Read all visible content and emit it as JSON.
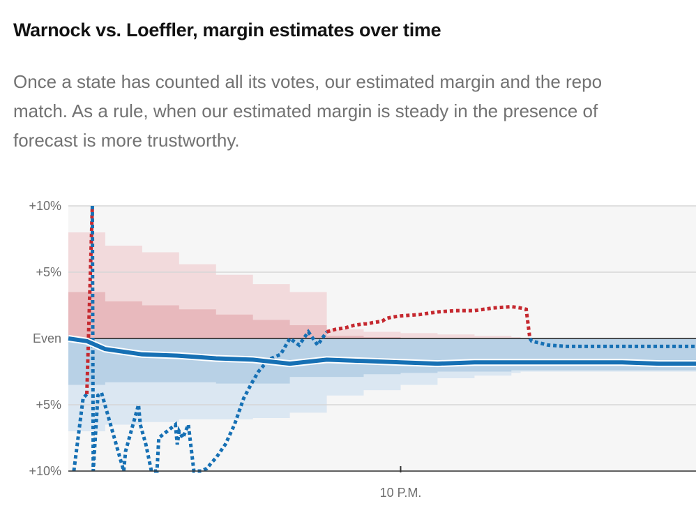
{
  "header": {
    "title": "Warnock vs. Loeffler, margin estimates over time",
    "subtitle_lines": [
      "Once a state has counted all its votes, our estimated margin and the repo",
      "match. As a rule, when our estimated margin is steady in the presence of",
      "forecast is more trustworthy."
    ]
  },
  "chart_data": {
    "type": "line",
    "title": "Warnock vs. Loeffler, margin estimates over time",
    "xlabel": "",
    "ylabel": "",
    "x_ticks": [
      "10 P.M."
    ],
    "y_ticks": [
      "+10%",
      "+5%",
      "Even",
      "+5%",
      "+10%"
    ],
    "ylim": [
      -10,
      10
    ],
    "y_note": "positive = Loeffler (red) margin, negative = Warnock (blue) margin",
    "x_unit": "minutes since 7 P.M. (10 P.M. = 180)",
    "colors": {
      "loeffler": "#c5282f",
      "warnock": "#1670b4",
      "band_red_outer": "#f2dadc",
      "band_red_inner": "#e8b9bd",
      "band_blue_outer": "#dbe7f2",
      "band_blue_inner": "#b8d1e6",
      "background": "#f6f6f6"
    },
    "series": [
      {
        "role": "estimated_margin",
        "style": "solid",
        "x": [
          0,
          10,
          20,
          40,
          60,
          80,
          100,
          120,
          140,
          160,
          180,
          200,
          220,
          240,
          260,
          280,
          300,
          320,
          340
        ],
        "values": [
          0.0,
          -0.2,
          -0.8,
          -1.2,
          -1.3,
          -1.5,
          -1.6,
          -1.9,
          -1.6,
          -1.7,
          -1.8,
          -1.9,
          -1.8,
          -1.8,
          -1.8,
          -1.8,
          -1.8,
          -1.9,
          -1.9
        ]
      },
      {
        "role": "reported_margin",
        "style": "dotted",
        "x": [
          3,
          8,
          10,
          13,
          13.5,
          16,
          18,
          30,
          31,
          38,
          39,
          42,
          45,
          48,
          49,
          58,
          59,
          60,
          62,
          65,
          68,
          72,
          75,
          78,
          80,
          85,
          90,
          95,
          100,
          103,
          106,
          110,
          115,
          120,
          125,
          130,
          135,
          140,
          145,
          150,
          155,
          160,
          162,
          165,
          170,
          172,
          175,
          180,
          190,
          200,
          210,
          220,
          230,
          240,
          245,
          248,
          250,
          251,
          260,
          270,
          280,
          290,
          300,
          310,
          320,
          330,
          340
        ],
        "values": [
          -10,
          -4.5,
          -4.2,
          10,
          -10,
          -4.3,
          -4.1,
          -10,
          -8.5,
          -5,
          -6.5,
          -8,
          -10,
          -10,
          -7.5,
          -6.5,
          -8,
          -7,
          -7.5,
          -6.5,
          -10,
          -10,
          -9.8,
          -9.3,
          -9,
          -8,
          -6.5,
          -4.5,
          -3.2,
          -2.5,
          -2.0,
          -1.5,
          -1.2,
          0.0,
          -0.5,
          0.5,
          -0.5,
          0.5,
          0.7,
          0.8,
          1.0,
          1.1,
          1.1,
          1.2,
          1.3,
          1.5,
          1.6,
          1.7,
          1.8,
          2.0,
          2.1,
          2.1,
          2.3,
          2.4,
          2.3,
          2.2,
          0.0,
          -0.2,
          -0.5,
          -0.6,
          -0.6,
          -0.6,
          -0.6,
          -0.6,
          -0.6,
          -0.6,
          -0.6
        ]
      }
    ],
    "uncertainty_bands": {
      "x": [
        0,
        20,
        40,
        60,
        80,
        100,
        120,
        140,
        160,
        180,
        200,
        220,
        240,
        245,
        250,
        300,
        340
      ],
      "outer_upper": [
        8.0,
        7.0,
        6.5,
        5.6,
        4.8,
        4.1,
        3.5,
        0.7,
        0.5,
        0.4,
        0.3,
        0.2,
        0.1,
        0.0,
        0.0,
        0.0,
        0.0
      ],
      "inner_upper": [
        3.5,
        2.8,
        2.5,
        2.2,
        1.8,
        1.4,
        1.0,
        0.2,
        0.1,
        0.0,
        0.0,
        0.0,
        0.0,
        0.0,
        0.0,
        0.0,
        0.0
      ],
      "inner_lower": [
        -3.5,
        -3.3,
        -3.3,
        -3.3,
        -3.4,
        -3.4,
        -2.9,
        -2.9,
        -2.7,
        -2.6,
        -2.5,
        -2.5,
        -2.4,
        -2.4,
        -2.4,
        -2.4,
        -2.4
      ],
      "outer_lower": [
        -7.0,
        -6.5,
        -6.3,
        -6.1,
        -6.1,
        -6.0,
        -5.6,
        -4.3,
        -3.9,
        -3.5,
        -3.0,
        -2.8,
        -2.6,
        -2.5,
        -2.5,
        -2.5,
        -2.5
      ]
    }
  }
}
